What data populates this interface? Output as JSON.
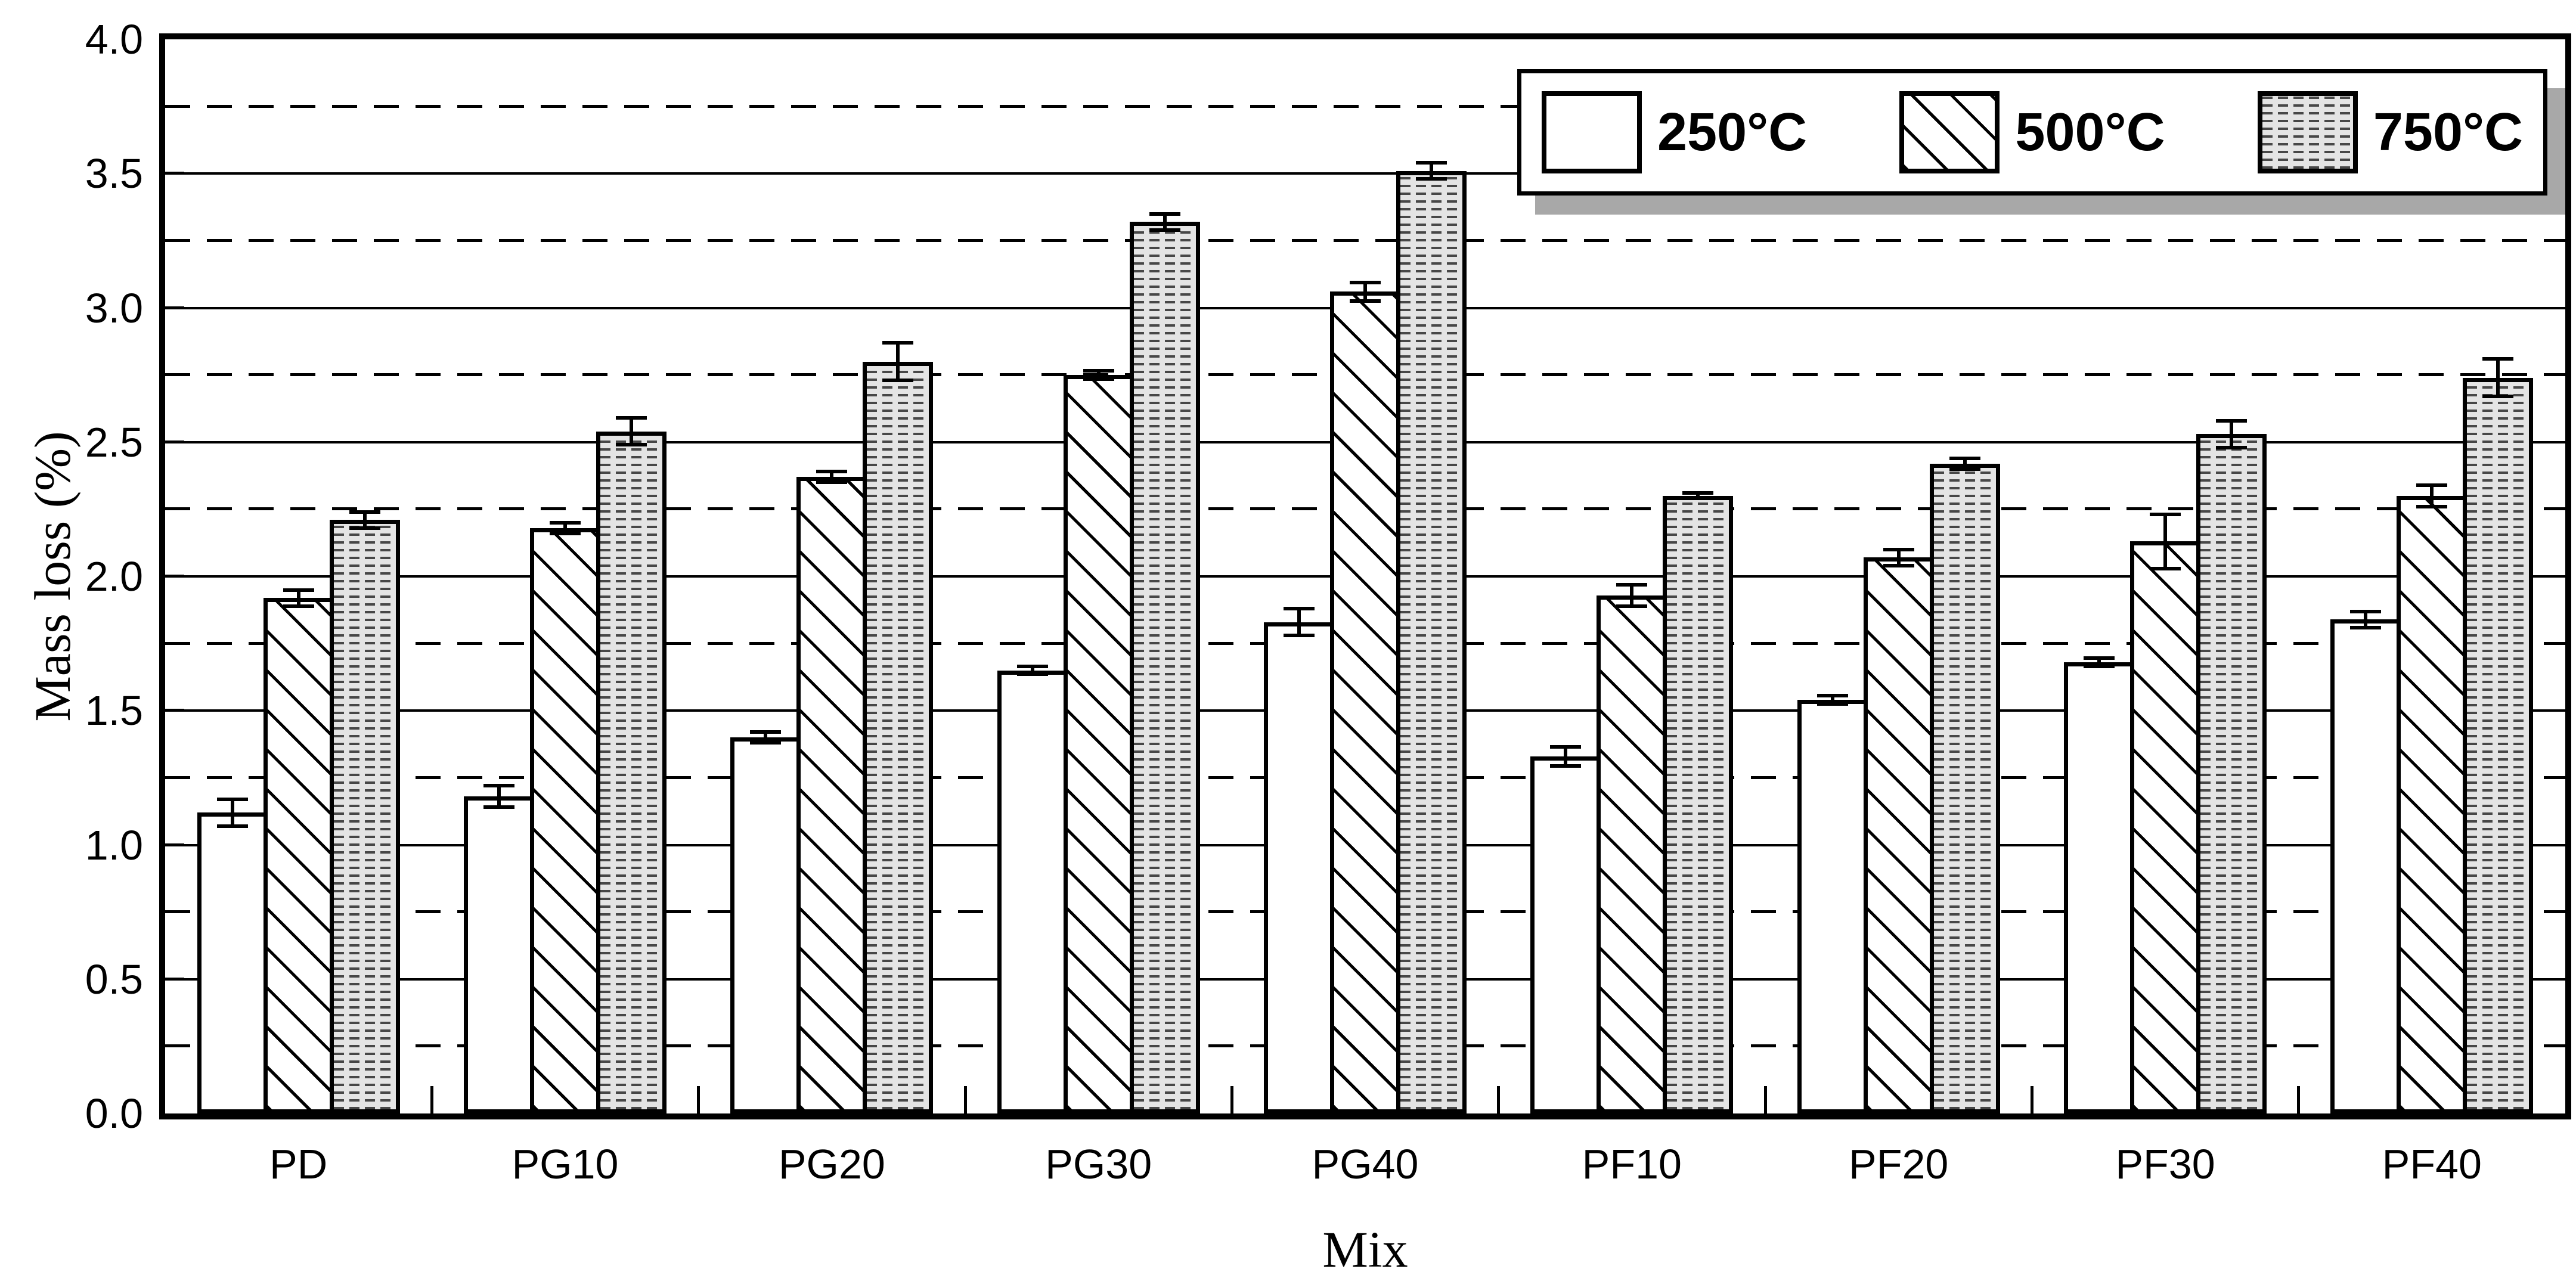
{
  "chart_data": {
    "type": "bar",
    "title": "",
    "xlabel": "Mix",
    "ylabel": "Mass loss (%)",
    "ylim": [
      0.0,
      4.0
    ],
    "ytick_step": 0.5,
    "yminor_step": 0.25,
    "ytick_labels": [
      "0.0",
      "0.5",
      "1.0",
      "1.5",
      "2.0",
      "2.5",
      "3.0",
      "3.5",
      "4.0"
    ],
    "grid": "major-solid-minor-dashed",
    "legend_position": "top-right-inside",
    "categories": [
      "PD",
      "PG10",
      "PG20",
      "PG30",
      "PG40",
      "PF10",
      "PF20",
      "PF30",
      "PF40"
    ],
    "series": [
      {
        "name": "250°C",
        "pattern": "plain-white",
        "values": [
          1.12,
          1.18,
          1.4,
          1.65,
          1.83,
          1.33,
          1.54,
          1.68,
          1.84
        ],
        "errors": [
          0.05,
          0.04,
          0.02,
          0.015,
          0.05,
          0.035,
          0.015,
          0.015,
          0.03
        ]
      },
      {
        "name": "500°C",
        "pattern": "diagonal-hatch",
        "values": [
          1.92,
          2.18,
          2.37,
          2.75,
          3.06,
          1.93,
          2.07,
          2.13,
          2.3
        ],
        "errors": [
          0.03,
          0.02,
          0.02,
          0.015,
          0.035,
          0.04,
          0.03,
          0.1,
          0.04
        ]
      },
      {
        "name": "750°C",
        "pattern": "gray-dotted",
        "values": [
          2.21,
          2.54,
          2.8,
          3.32,
          3.51,
          2.3,
          2.42,
          2.53,
          2.74
        ],
        "errors": [
          0.03,
          0.05,
          0.07,
          0.03,
          0.03,
          0.01,
          0.02,
          0.05,
          0.07
        ]
      }
    ],
    "colors": {
      "foreground": "#000000",
      "background": "#ffffff",
      "gray_fill": "#e4e4e4",
      "legend_shadow": "#a8a8a8"
    }
  }
}
